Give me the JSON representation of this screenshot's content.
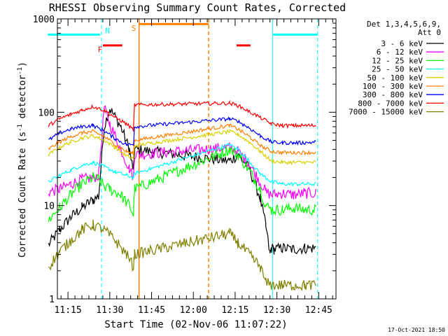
{
  "chart_data": {
    "type": "line",
    "title": "RHESSI Observing Summary Count Rates, Corrected",
    "xlabel": "Start Time (02-Nov-06 11:07:22)",
    "ylabel": {
      "main": "Corrected Count Rate (s",
      "sup1": "-1",
      "mid": " detector",
      "sup2": "-1",
      "end": ")"
    },
    "y_scale": "log",
    "ylim": [
      1,
      1000
    ],
    "y_tick_labels": [
      "1",
      "10",
      "100",
      "1000"
    ],
    "x_range_minutes": [
      11.2,
      111.2
    ],
    "x_ticks": [
      {
        "label": "11:15",
        "t": 675
      },
      {
        "label": "11:30",
        "t": 690
      },
      {
        "label": "11:45",
        "t": 705
      },
      {
        "label": "12:00",
        "t": 720
      },
      {
        "label": "12:15",
        "t": 735
      },
      {
        "label": "12:30",
        "t": 750
      },
      {
        "label": "12:45",
        "t": 765
      }
    ],
    "legend": {
      "header": [
        "Det 1,3,4,5,6,9,",
        "Att 0"
      ],
      "placement": "right"
    },
    "data_gaps": [
      [
        11.6,
        12.2
      ]
    ],
    "series": [
      {
        "name": "3 - 6 keV",
        "color": "#000000",
        "x": [
          668,
          672,
          676,
          680,
          684,
          686,
          688,
          690,
          694,
          697,
          698,
          698.5,
          698.9,
          733,
          736,
          740,
          744,
          746,
          747.5,
          748,
          749,
          752,
          756,
          760,
          764
        ],
        "y": [
          3.8,
          5.5,
          7.5,
          9.5,
          11.5,
          12.5,
          70,
          110,
          70,
          40,
          28,
          24,
          40,
          30,
          35,
          25,
          12,
          6,
          3,
          3.5,
          3.4,
          3.5,
          3.4,
          3.5,
          3.5
        ]
      },
      {
        "name": "6 - 12 keV",
        "color": "#ff00ff",
        "x": [
          668,
          672,
          676,
          680,
          684,
          686,
          688,
          690,
          694,
          697,
          698.5,
          698.9,
          733,
          736,
          740,
          744,
          746,
          748,
          752,
          756,
          760,
          764
        ],
        "y": [
          14,
          15,
          17,
          19,
          20,
          21,
          110,
          75,
          40,
          25,
          20,
          35,
          42,
          38,
          28,
          18,
          14,
          13,
          13.5,
          13,
          13.5,
          13.5
        ]
      },
      {
        "name": "12 - 25 keV",
        "color": "#00ff00",
        "x": [
          668,
          672,
          676,
          680,
          684,
          686,
          688,
          690,
          694,
          697,
          698.5,
          698.9,
          733,
          736,
          740,
          744,
          746,
          748,
          752,
          756,
          760,
          764
        ],
        "y": [
          7,
          9.5,
          13,
          17,
          20,
          19,
          16,
          15,
          13,
          10,
          8,
          15,
          40,
          35,
          24,
          15,
          10,
          9,
          9,
          9.5,
          9,
          9
        ]
      },
      {
        "name": "25 - 50 keV",
        "color": "#00ffff",
        "x": [
          668,
          672,
          676,
          680,
          684,
          688,
          692,
          696,
          698.5,
          698.9,
          733,
          736,
          740,
          744,
          748,
          752,
          756,
          760,
          764
        ],
        "y": [
          18,
          21,
          24,
          27,
          29,
          26,
          23,
          21,
          20,
          22,
          45,
          40,
          30,
          22,
          18,
          17,
          17,
          17,
          17
        ]
      },
      {
        "name": "50 - 100 keV",
        "color": "#d8d000",
        "x": [
          668,
          672,
          676,
          680,
          684,
          688,
          692,
          696,
          698.5,
          698.9,
          733,
          736,
          740,
          744,
          748,
          752,
          756,
          760,
          764
        ],
        "y": [
          35,
          42,
          48,
          53,
          56,
          50,
          42,
          34,
          32,
          44,
          62,
          58,
          48,
          38,
          30,
          29,
          29,
          29,
          29
        ]
      },
      {
        "name": "100 - 300 keV",
        "color": "#ff8000",
        "x": [
          668,
          672,
          676,
          680,
          684,
          688,
          692,
          696,
          698.5,
          698.9,
          733,
          736,
          740,
          744,
          748,
          752,
          756,
          760,
          764
        ],
        "y": [
          40,
          48,
          55,
          60,
          62,
          55,
          45,
          38,
          36,
          50,
          72,
          66,
          55,
          44,
          38,
          37,
          37,
          37,
          37
        ]
      },
      {
        "name": "300 - 800 keV",
        "color": "#0000ff",
        "x": [
          668,
          672,
          676,
          680,
          684,
          688,
          692,
          696,
          698.5,
          698.9,
          733,
          736,
          740,
          744,
          748,
          752,
          756,
          760,
          764
        ],
        "y": [
          50,
          60,
          66,
          70,
          72,
          63,
          52,
          45,
          45,
          70,
          85,
          80,
          68,
          56,
          48,
          47,
          47,
          47,
          48
        ]
      },
      {
        "name": "800 - 7000 keV",
        "color": "#ff0000",
        "x": [
          668,
          672,
          676,
          680,
          684,
          688,
          692,
          696,
          698.5,
          698.9,
          733,
          736,
          740,
          744,
          748,
          752,
          756,
          760,
          764
        ],
        "y": [
          72,
          85,
          95,
          105,
          115,
          105,
          88,
          75,
          65,
          120,
          125,
          118,
          102,
          88,
          75,
          72,
          72,
          72,
          72
        ]
      },
      {
        "name": "7000 - 15000 keV",
        "color": "#808000",
        "x": [
          668,
          672,
          676,
          680,
          684,
          688,
          692,
          696,
          698.5,
          698.9,
          733,
          736,
          740,
          744,
          746,
          748,
          752,
          756,
          760,
          764
        ],
        "y": [
          2.2,
          3.2,
          4.2,
          5.5,
          6.2,
          5.5,
          4.2,
          3.0,
          2.2,
          3.0,
          5,
          4,
          3,
          2.2,
          1.5,
          1.4,
          1.4,
          1.4,
          1.4,
          1.4
        ]
      }
    ],
    "flag_bars": [
      {
        "label": "N",
        "color": "#00ffff",
        "label_t": 689.2,
        "label_y": 750,
        "segments": [
          [
            667.8,
            686.5,
            680
          ],
          [
            748.5,
            764.6,
            680
          ]
        ]
      },
      {
        "label": "F",
        "color": "#ff0000",
        "label_t": 686.5,
        "label_y": 470,
        "segments": [
          [
            687.5,
            694.5,
            520
          ],
          [
            735.5,
            740.5,
            520
          ]
        ]
      },
      {
        "label": "S",
        "color": "#ff8000",
        "label_t": 698.6,
        "label_y": 800,
        "segments": [
          [
            700.5,
            725.5,
            880
          ]
        ]
      }
    ],
    "vertical_lines": [
      {
        "t": 687.0,
        "color": "#00ffff",
        "style": "dashed"
      },
      {
        "t": 700.5,
        "color": "#ff8000",
        "style": "solid"
      },
      {
        "t": 725.5,
        "color": "#ff8000",
        "style": "dashed"
      },
      {
        "t": 748.5,
        "color": "#00ffff",
        "style": "solid"
      },
      {
        "t": 764.6,
        "color": "#00ffff",
        "style": "dashed"
      }
    ]
  },
  "timestamp": "17-Oct-2021 18:50"
}
